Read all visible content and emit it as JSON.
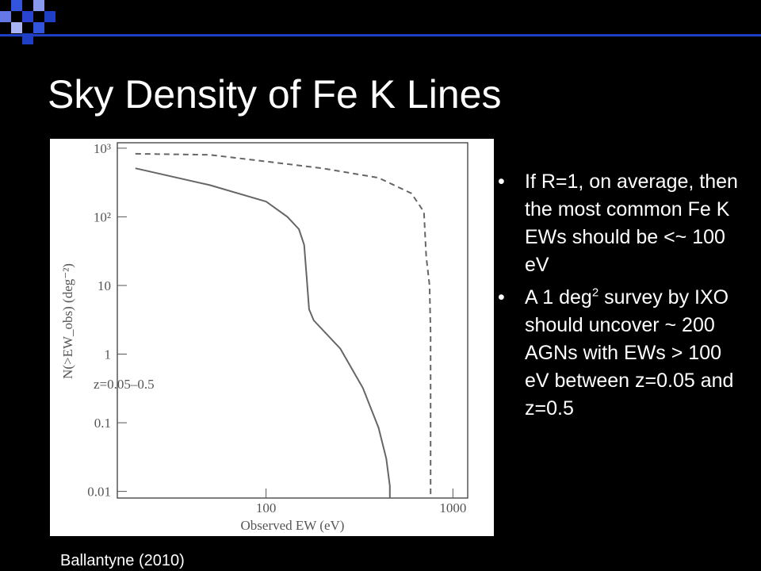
{
  "title": "Sky Density of Fe K Lines",
  "bullets": [
    {
      "text": "If R=1, on average, then the most common Fe K EWs should be <~ 100 eV"
    },
    {
      "text": "A 1 deg",
      "sup": "2",
      "rest": " survey by IXO should uncover ~ 200 AGNs with EWs > 100 eV between z=0.05 and z=0.5"
    }
  ],
  "caption": "Ballantyne (2010)",
  "chart_data": {
    "type": "line",
    "x_label": "Observed EW (eV)",
    "y_label": "N(>EW_obs) (deg⁻²)",
    "annotation": "z=0.05–0.5",
    "log_x": true,
    "log_y": true,
    "xlim": [
      16,
      1200
    ],
    "ylim": [
      0.008,
      1200
    ],
    "xticks": [
      100,
      1000
    ],
    "yticks": [
      0.01,
      0.1,
      1,
      10,
      {
        "value": 100,
        "label": "10²"
      },
      {
        "value": 1000,
        "label": "10³"
      }
    ],
    "series": [
      {
        "style": "solid",
        "color": "#666666",
        "x": [
          20,
          50,
          100,
          130,
          150,
          160,
          165,
          170,
          180,
          250,
          330,
          400,
          440,
          460,
          460
        ],
        "values": [
          510,
          290,
          167,
          100,
          66,
          39,
          13,
          4.5,
          3.1,
          1.2,
          0.32,
          0.085,
          0.03,
          0.012,
          0.008
        ]
      },
      {
        "style": "dashed",
        "color": "#666666",
        "x": [
          20,
          50,
          100,
          200,
          400,
          600,
          700,
          720,
          750,
          760,
          760
        ],
        "values": [
          830,
          800,
          640,
          510,
          370,
          220,
          118,
          26,
          10,
          2,
          0.008
        ]
      }
    ]
  }
}
